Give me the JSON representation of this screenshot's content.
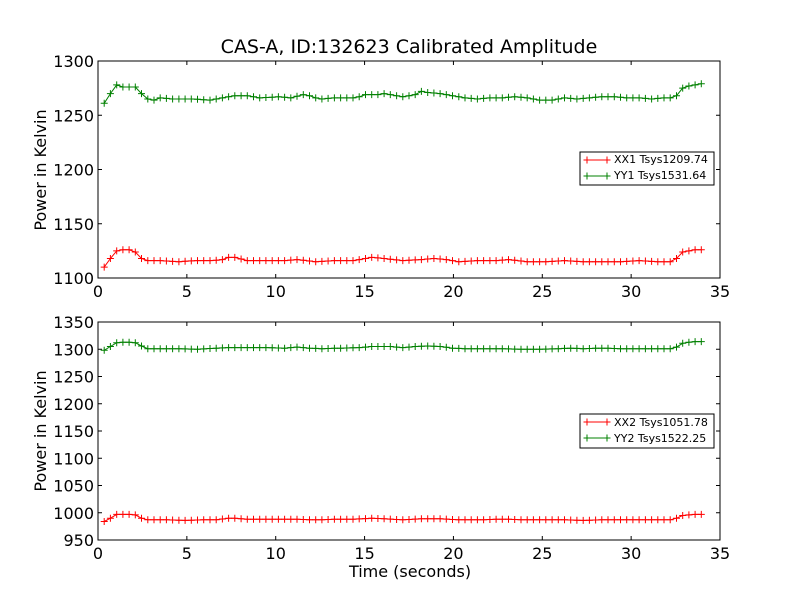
{
  "page": {
    "background": "#ffffff"
  },
  "figure": {
    "title": "CAS-A, ID:132623 Calibrated Amplitude"
  },
  "chart_data": [
    {
      "type": "line",
      "title": "CAS-A, ID:132623 Calibrated Amplitude",
      "xlabel": "",
      "ylabel": "Power in Kelvin",
      "xlim": [
        0,
        35
      ],
      "ylim": [
        1100,
        1300
      ],
      "xticks": [
        0,
        5,
        10,
        15,
        20,
        25,
        30,
        35
      ],
      "yticks": [
        1100,
        1150,
        1200,
        1250,
        1300
      ],
      "grid": false,
      "legend": "center-right",
      "marker": "+",
      "x": {
        "start": 0.35,
        "step": 0.35,
        "count": 97
      },
      "series": [
        {
          "name": "XX1 Tsys1209.74",
          "color": "#ff0000",
          "keypoints": [
            [
              0.35,
              1110
            ],
            [
              0.7,
              1118
            ],
            [
              1.05,
              1125
            ],
            [
              1.4,
              1126
            ],
            [
              1.75,
              1126
            ],
            [
              2.1,
              1124
            ],
            [
              2.45,
              1118
            ],
            [
              2.8,
              1116
            ],
            [
              3.5,
              1116
            ],
            [
              4.5,
              1115
            ],
            [
              5.5,
              1116
            ],
            [
              6.5,
              1116
            ],
            [
              7.0,
              1117
            ],
            [
              7.35,
              1119
            ],
            [
              7.7,
              1119
            ],
            [
              8.4,
              1116
            ],
            [
              9.5,
              1116
            ],
            [
              10.5,
              1116
            ],
            [
              11.2,
              1117
            ],
            [
              12.25,
              1115
            ],
            [
              13.3,
              1116
            ],
            [
              14.35,
              1116
            ],
            [
              15.4,
              1119
            ],
            [
              16.1,
              1118
            ],
            [
              17.15,
              1116
            ],
            [
              18.2,
              1117
            ],
            [
              18.9,
              1118
            ],
            [
              19.6,
              1117
            ],
            [
              20.3,
              1115
            ],
            [
              21.35,
              1116
            ],
            [
              22.4,
              1116
            ],
            [
              23.1,
              1117
            ],
            [
              24.15,
              1115
            ],
            [
              25.2,
              1115
            ],
            [
              26.25,
              1116
            ],
            [
              27.3,
              1115
            ],
            [
              28.35,
              1115
            ],
            [
              29.4,
              1115
            ],
            [
              30.45,
              1116
            ],
            [
              31.5,
              1115
            ],
            [
              32.2,
              1115
            ],
            [
              32.55,
              1118
            ],
            [
              32.9,
              1124
            ],
            [
              33.25,
              1125
            ],
            [
              33.6,
              1126
            ],
            [
              33.95,
              1126
            ],
            [
              34.3,
              1123
            ]
          ]
        },
        {
          "name": "YY1 Tsys1531.64",
          "color": "#008000",
          "keypoints": [
            [
              0.35,
              1261
            ],
            [
              0.7,
              1270
            ],
            [
              1.05,
              1278
            ],
            [
              1.4,
              1276
            ],
            [
              1.75,
              1276
            ],
            [
              2.1,
              1276
            ],
            [
              2.45,
              1270
            ],
            [
              2.8,
              1265
            ],
            [
              3.15,
              1264
            ],
            [
              3.5,
              1266
            ],
            [
              4.2,
              1265
            ],
            [
              5.25,
              1265
            ],
            [
              6.3,
              1264
            ],
            [
              7.0,
              1266
            ],
            [
              7.7,
              1268
            ],
            [
              8.4,
              1268
            ],
            [
              9.1,
              1266
            ],
            [
              10.15,
              1267
            ],
            [
              10.85,
              1266
            ],
            [
              11.55,
              1269
            ],
            [
              11.9,
              1268
            ],
            [
              12.25,
              1266
            ],
            [
              12.6,
              1265
            ],
            [
              13.3,
              1266
            ],
            [
              14.35,
              1266
            ],
            [
              14.7,
              1267
            ],
            [
              15.05,
              1269
            ],
            [
              15.75,
              1269
            ],
            [
              16.1,
              1270
            ],
            [
              16.45,
              1269
            ],
            [
              17.15,
              1267
            ],
            [
              17.85,
              1269
            ],
            [
              18.2,
              1272
            ],
            [
              18.55,
              1271
            ],
            [
              19.25,
              1270
            ],
            [
              19.95,
              1268
            ],
            [
              20.65,
              1266
            ],
            [
              21.35,
              1265
            ],
            [
              22.05,
              1266
            ],
            [
              22.75,
              1266
            ],
            [
              23.45,
              1267
            ],
            [
              24.15,
              1266
            ],
            [
              24.85,
              1264
            ],
            [
              25.55,
              1264
            ],
            [
              26.25,
              1266
            ],
            [
              26.95,
              1265
            ],
            [
              27.65,
              1266
            ],
            [
              28.35,
              1267
            ],
            [
              29.05,
              1267
            ],
            [
              29.75,
              1266
            ],
            [
              30.45,
              1266
            ],
            [
              31.15,
              1265
            ],
            [
              31.85,
              1266
            ],
            [
              32.2,
              1266
            ],
            [
              32.55,
              1268
            ],
            [
              32.9,
              1275
            ],
            [
              33.25,
              1277
            ],
            [
              33.6,
              1278
            ],
            [
              33.95,
              1279
            ],
            [
              34.3,
              1280
            ]
          ]
        }
      ]
    },
    {
      "type": "line",
      "title": "",
      "xlabel": "Time (seconds)",
      "ylabel": "Power in Kelvin",
      "xlim": [
        0,
        35
      ],
      "ylim": [
        950,
        1350
      ],
      "xticks": [
        0,
        5,
        10,
        15,
        20,
        25,
        30,
        35
      ],
      "yticks": [
        950,
        1000,
        1050,
        1100,
        1150,
        1200,
        1250,
        1300,
        1350
      ],
      "grid": false,
      "legend": "center-right",
      "marker": "+",
      "x": {
        "start": 0.35,
        "step": 0.35,
        "count": 97
      },
      "series": [
        {
          "name": "XX2 Tsys1051.78",
          "color": "#ff0000",
          "keypoints": [
            [
              0.35,
              984
            ],
            [
              0.7,
              990
            ],
            [
              1.05,
              997
            ],
            [
              1.4,
              997
            ],
            [
              1.75,
              997
            ],
            [
              2.1,
              996
            ],
            [
              2.45,
              990
            ],
            [
              2.8,
              987
            ],
            [
              3.85,
              987
            ],
            [
              4.9,
              986
            ],
            [
              5.95,
              987
            ],
            [
              6.65,
              987
            ],
            [
              7.35,
              990
            ],
            [
              7.7,
              990
            ],
            [
              8.4,
              988
            ],
            [
              9.45,
              988
            ],
            [
              10.5,
              988
            ],
            [
              11.2,
              988
            ],
            [
              12.25,
              987
            ],
            [
              13.3,
              988
            ],
            [
              14.35,
              988
            ],
            [
              15.4,
              990
            ],
            [
              16.1,
              989
            ],
            [
              17.15,
              987
            ],
            [
              18.2,
              989
            ],
            [
              19.25,
              989
            ],
            [
              20.3,
              987
            ],
            [
              21.35,
              987
            ],
            [
              22.4,
              988
            ],
            [
              23.1,
              988
            ],
            [
              24.15,
              987
            ],
            [
              25.2,
              987
            ],
            [
              26.25,
              987
            ],
            [
              27.3,
              986
            ],
            [
              28.35,
              987
            ],
            [
              29.4,
              987
            ],
            [
              30.45,
              987
            ],
            [
              31.5,
              987
            ],
            [
              32.2,
              987
            ],
            [
              32.55,
              990
            ],
            [
              32.9,
              995
            ],
            [
              33.25,
              996
            ],
            [
              33.6,
              997
            ],
            [
              33.95,
              997
            ],
            [
              34.3,
              996
            ]
          ]
        },
        {
          "name": "YY2 Tsys1522.25",
          "color": "#008000",
          "keypoints": [
            [
              0.35,
              1298
            ],
            [
              0.7,
              1305
            ],
            [
              1.05,
              1312
            ],
            [
              1.4,
              1313
            ],
            [
              1.75,
              1313
            ],
            [
              2.1,
              1312
            ],
            [
              2.45,
              1306
            ],
            [
              2.8,
              1301
            ],
            [
              3.5,
              1301
            ],
            [
              4.55,
              1301
            ],
            [
              5.6,
              1300
            ],
            [
              6.65,
              1302
            ],
            [
              7.35,
              1303
            ],
            [
              8.4,
              1303
            ],
            [
              9.45,
              1303
            ],
            [
              10.5,
              1302
            ],
            [
              11.2,
              1304
            ],
            [
              11.9,
              1302
            ],
            [
              12.6,
              1301
            ],
            [
              13.65,
              1302
            ],
            [
              14.7,
              1303
            ],
            [
              15.4,
              1305
            ],
            [
              16.45,
              1305
            ],
            [
              17.15,
              1303
            ],
            [
              17.85,
              1305
            ],
            [
              18.55,
              1306
            ],
            [
              19.25,
              1305
            ],
            [
              19.95,
              1302
            ],
            [
              20.65,
              1301
            ],
            [
              21.7,
              1301
            ],
            [
              22.75,
              1301
            ],
            [
              23.8,
              1300
            ],
            [
              24.85,
              1300
            ],
            [
              25.9,
              1301
            ],
            [
              26.6,
              1302
            ],
            [
              27.3,
              1301
            ],
            [
              28.35,
              1302
            ],
            [
              29.4,
              1301
            ],
            [
              30.45,
              1301
            ],
            [
              31.5,
              1301
            ],
            [
              32.2,
              1301
            ],
            [
              32.55,
              1304
            ],
            [
              32.9,
              1311
            ],
            [
              33.25,
              1313
            ],
            [
              33.6,
              1314
            ],
            [
              33.95,
              1314
            ],
            [
              34.3,
              1313
            ]
          ]
        }
      ]
    }
  ]
}
